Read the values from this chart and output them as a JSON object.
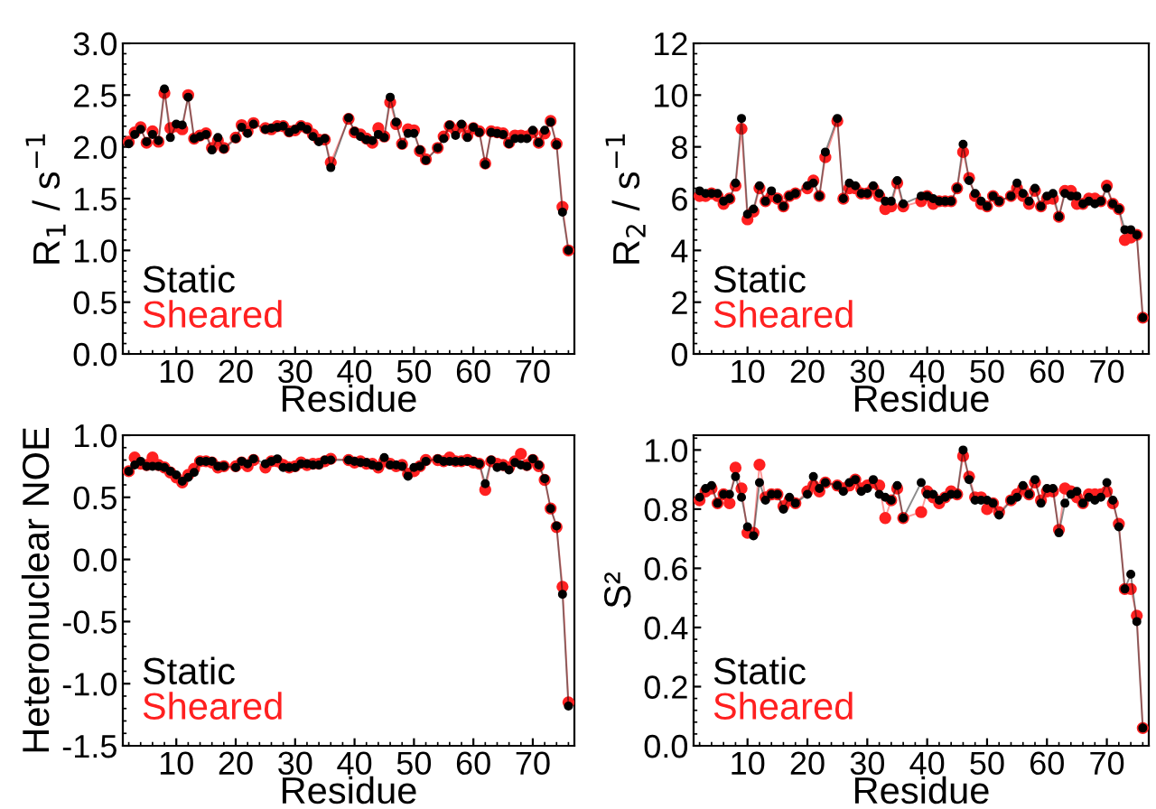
{
  "chart_data": [
    {
      "type": "line",
      "xlabel": "Residue",
      "ylabel": "R$_{1}$ / s$^{−1}$",
      "xlim": [
        1,
        77
      ],
      "xticks": [
        10,
        20,
        30,
        40,
        50,
        60,
        70
      ],
      "ylim": [
        0,
        3
      ],
      "yticks": [
        {
          "value": 0,
          "label": "0.0"
        },
        {
          "value": 0.5,
          "label": "0.5"
        },
        {
          "value": 1,
          "label": "1.0"
        },
        {
          "value": 1.5,
          "label": "1.5"
        },
        {
          "value": 2,
          "label": "2.0"
        },
        {
          "value": 2.5,
          "label": "2.5"
        },
        {
          "value": 3,
          "label": "3.0"
        }
      ],
      "legend": "bottom left",
      "marker": "circle",
      "grid": false,
      "x": [
        2,
        3,
        4,
        5,
        6,
        7,
        8,
        9,
        10,
        11,
        12,
        13,
        14,
        15,
        16,
        17,
        18,
        20,
        21,
        22,
        23,
        25,
        26,
        27,
        28,
        29,
        30,
        31,
        32,
        33,
        34,
        35,
        36,
        39,
        40,
        41,
        42,
        43,
        44,
        45,
        46,
        47,
        48,
        49,
        50,
        51,
        52,
        54,
        55,
        56,
        57,
        58,
        59,
        60,
        61,
        62,
        63,
        64,
        65,
        66,
        67,
        68,
        69,
        70,
        71,
        72,
        73,
        74,
        75,
        76
      ],
      "series": [
        {
          "name": "Static",
          "color": "#000000",
          "values": [
            2.03,
            2.12,
            2.17,
            2.05,
            2.12,
            2.06,
            2.56,
            2.09,
            2.22,
            2.21,
            2.48,
            2.08,
            2.1,
            2.12,
            1.97,
            2.09,
            1.98,
            2.08,
            2.19,
            2.13,
            2.22,
            2.17,
            2.18,
            2.19,
            2.2,
            2.14,
            2.17,
            2.2,
            2.17,
            2.1,
            2.05,
            2.08,
            1.8,
            2.28,
            2.15,
            2.1,
            2.07,
            2.06,
            2.12,
            2.09,
            2.48,
            2.24,
            2.02,
            2.13,
            2.13,
            1.97,
            1.87,
            1.99,
            2.08,
            2.21,
            2.11,
            2.22,
            2.09,
            2.19,
            2.14,
            1.83,
            2.14,
            2.13,
            2.12,
            2.03,
            2.08,
            2.08,
            2.08,
            2.16,
            2.04,
            2.16,
            2.24,
            2.02,
            1.37,
            1.0
          ]
        },
        {
          "name": "Sheared",
          "color": "#ff2020",
          "values": [
            2.05,
            2.14,
            2.19,
            2.04,
            2.15,
            2.05,
            2.52,
            2.18,
            2.2,
            2.17,
            2.5,
            2.08,
            2.11,
            2.13,
            1.99,
            2.06,
            1.99,
            2.09,
            2.21,
            2.15,
            2.23,
            2.18,
            2.17,
            2.2,
            2.2,
            2.15,
            2.16,
            2.2,
            2.18,
            2.12,
            2.07,
            2.07,
            1.85,
            2.27,
            2.14,
            2.12,
            2.08,
            2.04,
            2.18,
            2.1,
            2.43,
            2.22,
            2.03,
            2.17,
            2.16,
            1.96,
            1.88,
            1.99,
            2.1,
            2.2,
            2.16,
            2.2,
            2.11,
            2.18,
            2.15,
            1.84,
            2.15,
            2.14,
            2.13,
            2.04,
            2.11,
            2.11,
            2.1,
            2.14,
            2.04,
            2.13,
            2.25,
            2.03,
            1.42,
            1.0
          ]
        }
      ]
    },
    {
      "type": "line",
      "xlabel": "Residue",
      "ylabel": "R$_{2}$ / s$^{−1}$",
      "xlim": [
        1,
        77
      ],
      "xticks": [
        10,
        20,
        30,
        40,
        50,
        60,
        70
      ],
      "ylim": [
        0,
        12
      ],
      "yticks": [
        0,
        2,
        4,
        6,
        8,
        10,
        12
      ],
      "legend": "bottom left",
      "marker": "circle",
      "grid": false,
      "x": [
        2,
        3,
        4,
        5,
        6,
        7,
        8,
        9,
        10,
        11,
        12,
        13,
        14,
        15,
        16,
        17,
        18,
        20,
        21,
        22,
        23,
        25,
        26,
        27,
        28,
        29,
        30,
        31,
        32,
        33,
        34,
        35,
        36,
        39,
        40,
        41,
        42,
        43,
        44,
        45,
        46,
        47,
        48,
        49,
        50,
        51,
        52,
        54,
        55,
        56,
        57,
        58,
        59,
        60,
        61,
        62,
        63,
        64,
        65,
        66,
        67,
        68,
        69,
        70,
        71,
        72,
        73,
        74,
        75,
        76
      ],
      "series": [
        {
          "name": "Static",
          "color": "#000000",
          "values": [
            6.3,
            6.2,
            6.2,
            6.2,
            5.9,
            6.0,
            6.6,
            9.1,
            5.4,
            5.6,
            6.5,
            5.9,
            6.3,
            6.0,
            5.7,
            6.1,
            6.2,
            6.5,
            6.6,
            6.1,
            7.8,
            9.1,
            6.0,
            6.6,
            6.5,
            6.2,
            6.2,
            6.5,
            6.2,
            5.9,
            5.9,
            6.7,
            5.8,
            6.1,
            6.1,
            6.0,
            5.9,
            5.9,
            5.9,
            6.4,
            8.1,
            6.7,
            6.2,
            5.9,
            5.7,
            6.1,
            5.9,
            6.1,
            6.6,
            6.2,
            5.9,
            6.4,
            5.7,
            6.1,
            6.2,
            5.3,
            6.2,
            6.1,
            6.1,
            5.8,
            5.9,
            5.8,
            5.9,
            6.4,
            5.8,
            5.6,
            4.8,
            4.8,
            4.6,
            1.4
          ]
        },
        {
          "name": "Sheared",
          "color": "#ff2020",
          "values": [
            6.1,
            6.1,
            6.2,
            6.1,
            5.8,
            6.0,
            6.5,
            8.7,
            5.2,
            5.5,
            6.4,
            5.9,
            6.1,
            6.0,
            5.7,
            6.1,
            6.2,
            6.4,
            6.7,
            6.1,
            7.6,
            9.0,
            6.0,
            6.4,
            6.4,
            6.2,
            6.2,
            6.4,
            6.1,
            5.6,
            5.7,
            6.6,
            5.7,
            5.9,
            6.1,
            5.8,
            5.9,
            5.9,
            5.9,
            6.4,
            7.8,
            6.8,
            6.1,
            5.8,
            5.7,
            6.1,
            5.9,
            6.1,
            6.4,
            6.1,
            5.8,
            6.3,
            5.7,
            6.0,
            6.0,
            5.3,
            6.3,
            6.3,
            5.8,
            5.8,
            6.0,
            6.0,
            5.9,
            6.5,
            5.8,
            5.6,
            4.4,
            4.5,
            4.6,
            1.4
          ]
        }
      ]
    },
    {
      "type": "line",
      "xlabel": "Residue",
      "ylabel": "Heteronuclear NOE",
      "xlim": [
        1,
        77
      ],
      "xticks": [
        10,
        20,
        30,
        40,
        50,
        60,
        70
      ],
      "ylim": [
        -1.5,
        1
      ],
      "yticks": [
        {
          "value": -1.5,
          "label": "-1.5"
        },
        {
          "value": -1,
          "label": "-1.0"
        },
        {
          "value": -0.5,
          "label": "-0.5"
        },
        {
          "value": 0,
          "label": "0.0"
        },
        {
          "value": 0.5,
          "label": "0.5"
        },
        {
          "value": 1,
          "label": "1.0"
        }
      ],
      "legend": "bottom left",
      "marker": "circle",
      "grid": false,
      "x": [
        2,
        3,
        4,
        5,
        6,
        7,
        8,
        9,
        10,
        11,
        12,
        13,
        14,
        15,
        16,
        17,
        18,
        20,
        21,
        22,
        23,
        25,
        26,
        27,
        28,
        29,
        30,
        31,
        32,
        33,
        34,
        35,
        36,
        39,
        40,
        41,
        42,
        43,
        44,
        45,
        46,
        47,
        48,
        49,
        50,
        51,
        52,
        54,
        55,
        56,
        57,
        58,
        59,
        60,
        61,
        62,
        63,
        64,
        65,
        66,
        67,
        68,
        69,
        70,
        71,
        72,
        73,
        74,
        75,
        76
      ],
      "series": [
        {
          "name": "Static",
          "color": "#000000",
          "values": [
            0.71,
            0.76,
            0.79,
            0.75,
            0.75,
            0.75,
            0.74,
            0.71,
            0.68,
            0.63,
            0.66,
            0.7,
            0.79,
            0.79,
            0.79,
            0.75,
            0.75,
            0.74,
            0.79,
            0.77,
            0.81,
            0.77,
            0.79,
            0.81,
            0.74,
            0.74,
            0.74,
            0.77,
            0.77,
            0.76,
            0.76,
            0.8,
            0.8,
            0.8,
            0.79,
            0.78,
            0.78,
            0.76,
            0.75,
            0.82,
            0.76,
            0.76,
            0.75,
            0.67,
            0.74,
            0.75,
            0.79,
            0.81,
            0.79,
            0.79,
            0.79,
            0.79,
            0.79,
            0.79,
            0.77,
            0.61,
            0.8,
            0.74,
            0.75,
            0.72,
            0.78,
            0.76,
            0.75,
            0.81,
            0.76,
            0.65,
            0.41,
            0.27,
            -0.28,
            -1.18
          ]
        },
        {
          "name": "Sheared",
          "color": "#ff2020",
          "values": [
            0.71,
            0.82,
            0.77,
            0.76,
            0.82,
            0.76,
            0.74,
            0.7,
            0.66,
            0.62,
            0.68,
            0.73,
            0.79,
            0.79,
            0.78,
            0.74,
            0.75,
            0.75,
            0.78,
            0.75,
            0.8,
            0.74,
            0.79,
            0.79,
            0.76,
            0.74,
            0.75,
            0.78,
            0.76,
            0.77,
            0.77,
            0.79,
            0.81,
            0.8,
            0.78,
            0.79,
            0.77,
            0.77,
            0.74,
            0.79,
            0.77,
            0.75,
            0.76,
            0.69,
            0.71,
            0.75,
            0.8,
            0.8,
            0.79,
            0.82,
            0.79,
            0.79,
            0.8,
            0.78,
            0.77,
            0.56,
            0.79,
            0.77,
            0.76,
            0.74,
            0.79,
            0.85,
            0.76,
            0.8,
            0.75,
            0.64,
            0.41,
            0.26,
            -0.22,
            -1.15
          ]
        }
      ]
    },
    {
      "type": "line",
      "xlabel": "Residue",
      "ylabel": "S²",
      "xlim": [
        1,
        77
      ],
      "xticks": [
        10,
        20,
        30,
        40,
        50,
        60,
        70
      ],
      "ylim": [
        0,
        1.05
      ],
      "yticks": [
        {
          "value": 0,
          "label": "0.0"
        },
        {
          "value": 0.2,
          "label": "0.2"
        },
        {
          "value": 0.4,
          "label": "0.4"
        },
        {
          "value": 0.6,
          "label": "0.6"
        },
        {
          "value": 0.8,
          "label": "0.8"
        },
        {
          "value": 1,
          "label": "1.0"
        }
      ],
      "legend": "bottom left",
      "marker": "circle",
      "grid": false,
      "x": [
        2,
        3,
        4,
        5,
        6,
        7,
        8,
        9,
        10,
        11,
        12,
        13,
        14,
        15,
        16,
        17,
        18,
        20,
        21,
        22,
        23,
        25,
        26,
        27,
        28,
        29,
        30,
        31,
        32,
        33,
        34,
        35,
        36,
        39,
        40,
        41,
        42,
        43,
        44,
        45,
        46,
        47,
        48,
        49,
        50,
        51,
        52,
        54,
        55,
        56,
        57,
        58,
        59,
        60,
        61,
        62,
        63,
        64,
        65,
        66,
        67,
        68,
        69,
        70,
        71,
        72,
        73,
        74,
        75,
        76
      ],
      "series": [
        {
          "name": "Static",
          "color": "#000000",
          "values": [
            0.84,
            0.87,
            0.88,
            0.82,
            0.85,
            0.85,
            0.91,
            0.84,
            0.74,
            0.71,
            0.89,
            0.83,
            0.85,
            0.85,
            0.8,
            0.84,
            0.82,
            0.85,
            0.91,
            0.87,
            0.89,
            0.88,
            0.86,
            0.89,
            0.9,
            0.86,
            0.87,
            0.9,
            0.85,
            0.84,
            0.83,
            0.88,
            0.77,
            0.89,
            0.85,
            0.85,
            0.83,
            0.84,
            0.85,
            0.85,
            1.0,
            0.9,
            0.83,
            0.83,
            0.83,
            0.82,
            0.78,
            0.83,
            0.84,
            0.88,
            0.85,
            0.9,
            0.82,
            0.87,
            0.87,
            0.72,
            0.82,
            0.85,
            0.86,
            0.82,
            0.84,
            0.83,
            0.84,
            0.89,
            0.83,
            0.74,
            0.53,
            0.58,
            0.42,
            0.06
          ]
        },
        {
          "name": "Sheared",
          "color": "#ff2020",
          "values": [
            0.83,
            0.86,
            0.87,
            0.82,
            0.85,
            0.82,
            0.94,
            0.87,
            0.72,
            0.72,
            0.95,
            0.84,
            0.85,
            0.85,
            0.81,
            0.83,
            0.82,
            0.86,
            0.88,
            0.86,
            0.89,
            0.88,
            0.87,
            0.88,
            0.9,
            0.87,
            0.88,
            0.89,
            0.88,
            0.77,
            0.83,
            0.87,
            0.77,
            0.79,
            0.86,
            0.84,
            0.82,
            0.84,
            0.86,
            0.85,
            0.98,
            0.91,
            0.84,
            0.84,
            0.8,
            0.82,
            0.79,
            0.83,
            0.85,
            0.87,
            0.85,
            0.89,
            0.83,
            0.86,
            0.86,
            0.73,
            0.87,
            0.86,
            0.84,
            0.82,
            0.85,
            0.85,
            0.85,
            0.86,
            0.82,
            0.75,
            0.53,
            0.53,
            0.44,
            0.06
          ]
        }
      ]
    }
  ]
}
